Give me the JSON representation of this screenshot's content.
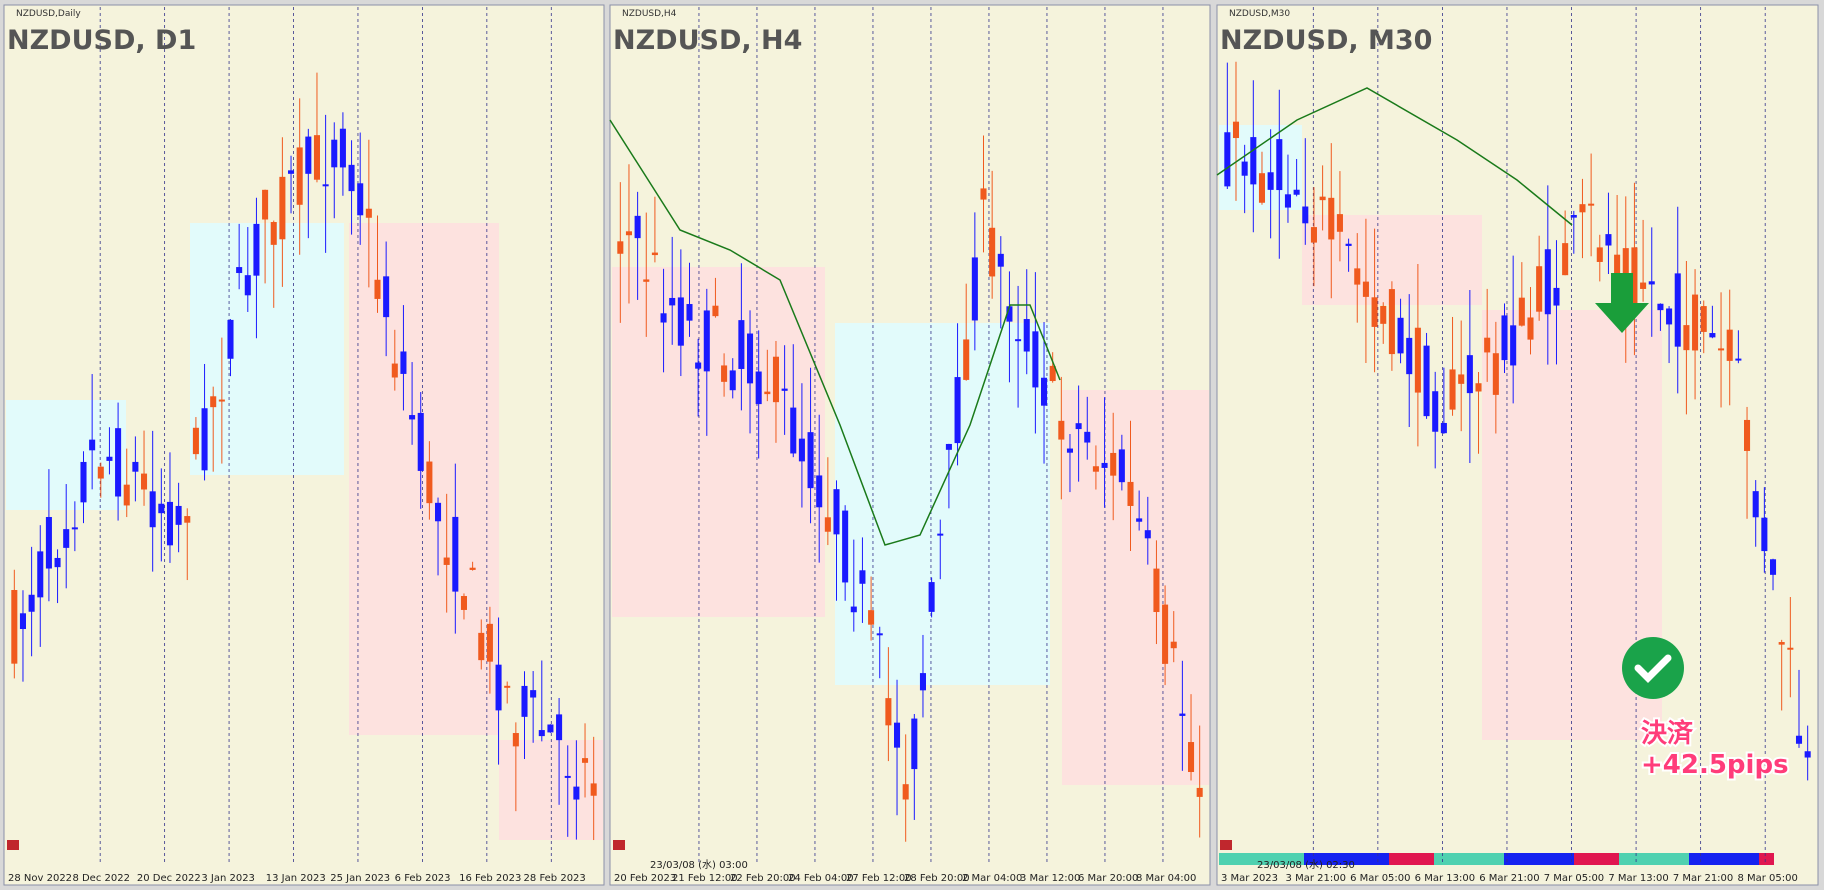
{
  "panels": [
    {
      "symbol_label": "NZDUSD,Daily",
      "title": "NZDUSD, D1",
      "x_labels": [
        "28 Nov 2022",
        "8 Dec 2022",
        "20 Dec 2022",
        "3 Jan 2023",
        "13 Jan 2023",
        "25 Jan 2023",
        "6 Feb 2023",
        "16 Feb 2023",
        "28 Feb 2023"
      ]
    },
    {
      "symbol_label": "NZDUSD,H4",
      "title": "NZDUSD, H4",
      "cursor_label": "23/03/08 (水) 03:00",
      "x_labels": [
        "20 Feb 2023",
        "21 Feb 12:00",
        "22 Feb 20:00",
        "24 Feb 04:00",
        "27 Feb 12:00",
        "28 Feb 20:00",
        "2 Mar 04:00",
        "3 Mar 12:00",
        "6 Mar 20:00",
        "8 Mar 04:00"
      ]
    },
    {
      "symbol_label": "NZDUSD,M30",
      "title": "NZDUSD, M30",
      "cursor_label": "23/03/08 (水) 02:30",
      "x_labels": [
        "3 Mar 2023",
        "3 Mar 21:00",
        "6 Mar 05:00",
        "6 Mar 13:00",
        "6 Mar 21:00",
        "7 Mar 05:00",
        "7 Mar 13:00",
        "7 Mar 21:00",
        "8 Mar 05:00"
      ]
    }
  ],
  "annotation": {
    "line1": "決済",
    "line2": "+42.5pips"
  }
}
